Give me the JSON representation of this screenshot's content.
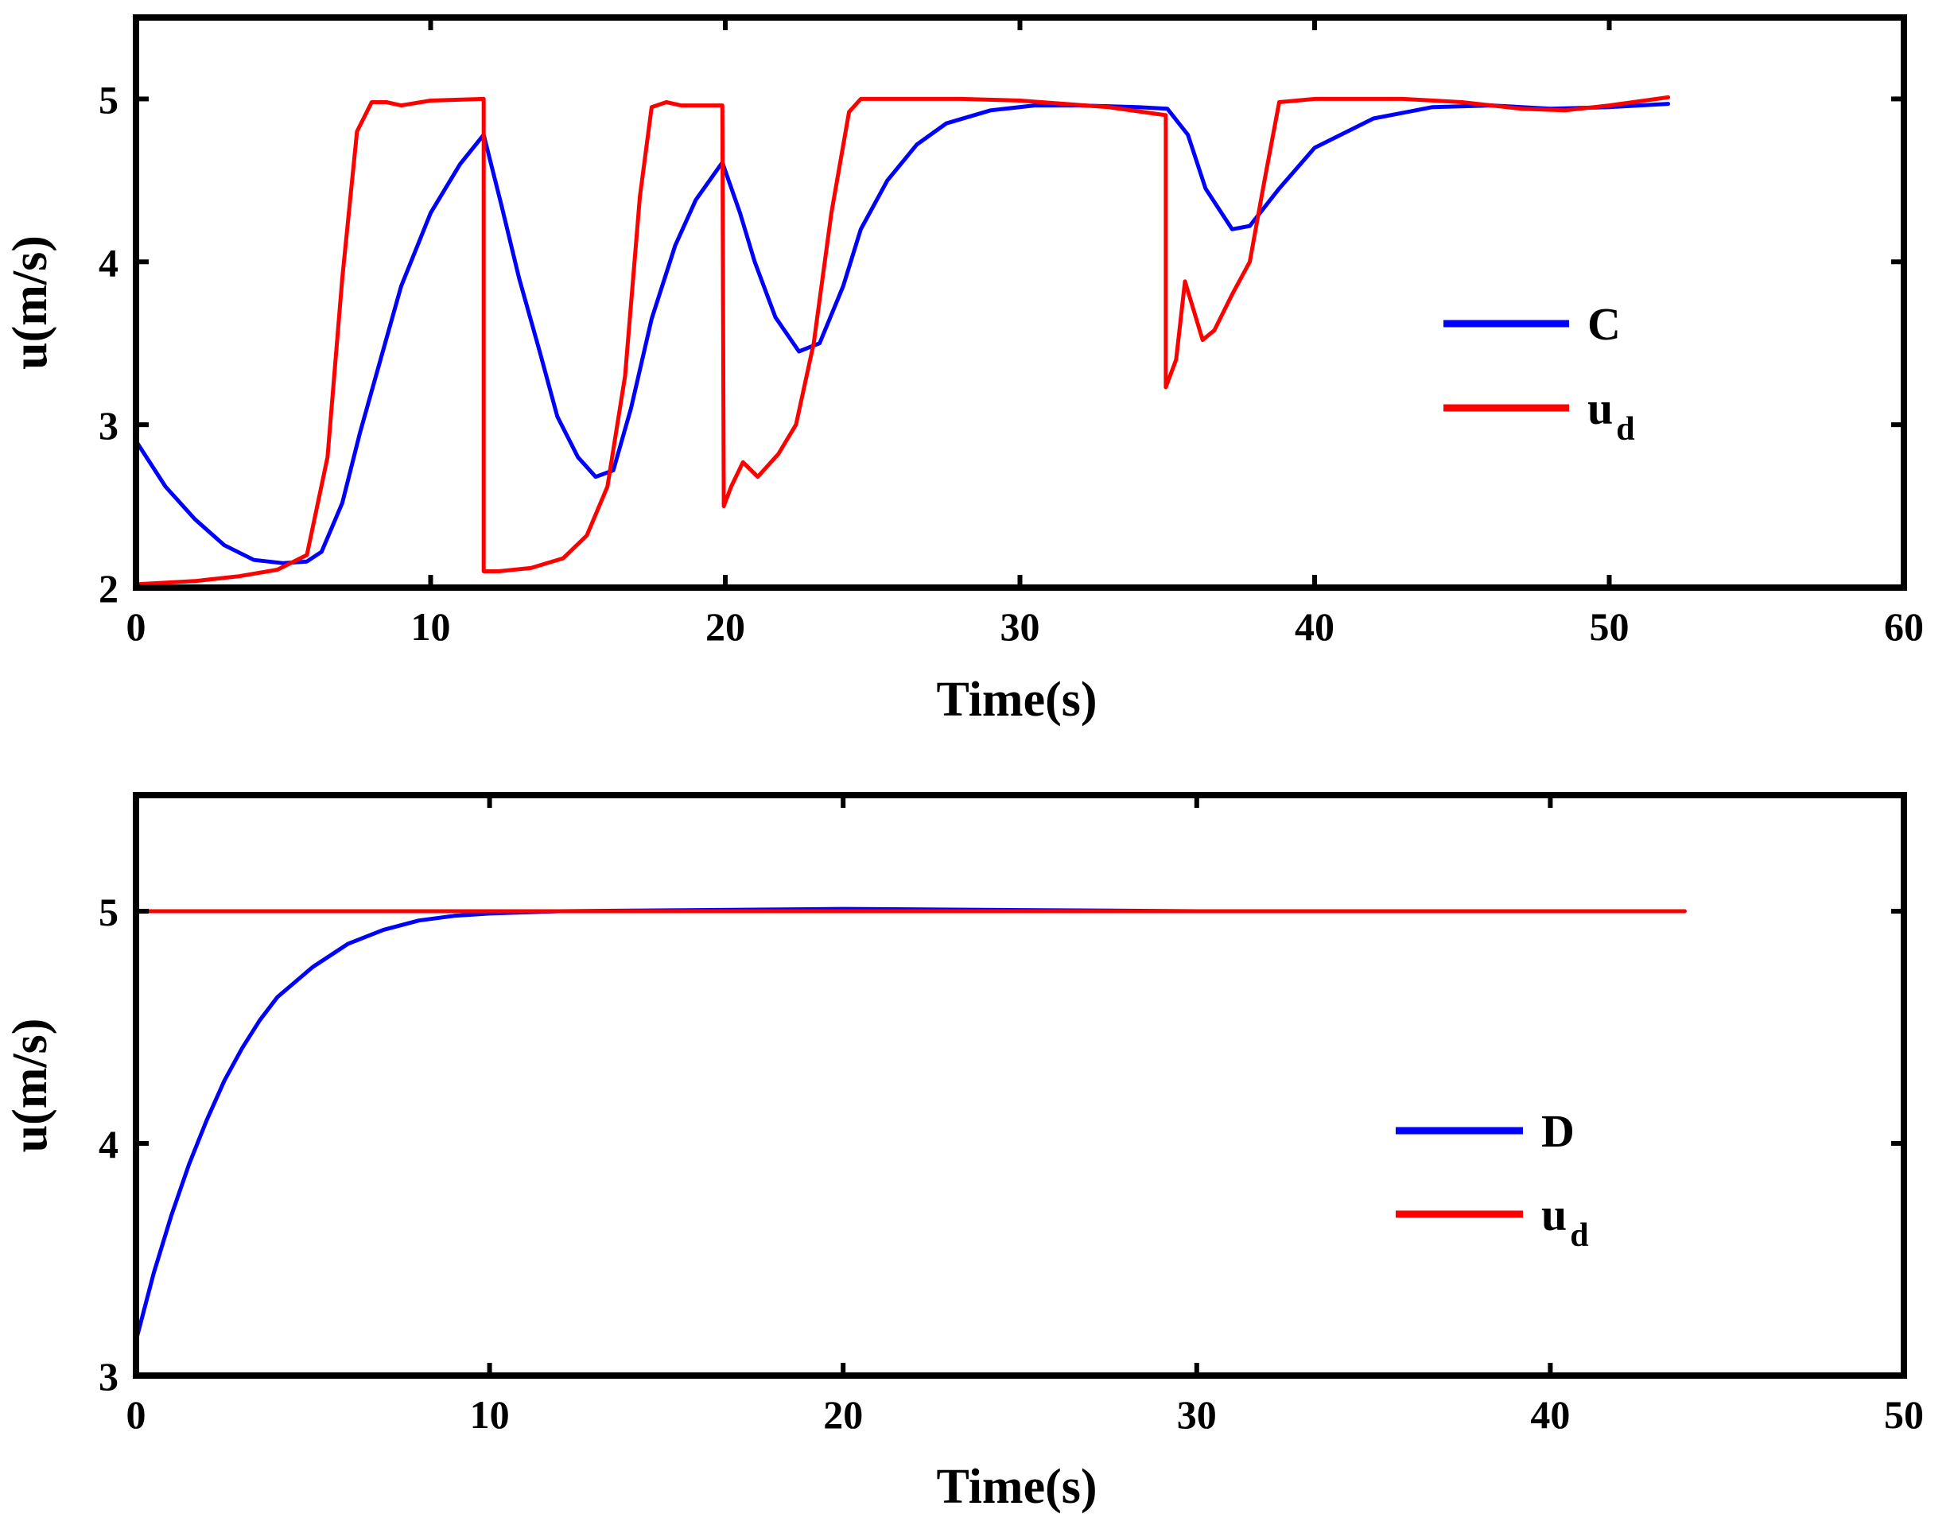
{
  "chart_data": [
    {
      "type": "line",
      "title": "",
      "xlabel": "Time(s)",
      "ylabel": "u(m/s)",
      "xlim": [
        0,
        60
      ],
      "ylim": [
        2,
        5.5
      ],
      "xticks": [
        0,
        10,
        20,
        30,
        40,
        50,
        60
      ],
      "yticks": [
        2,
        3,
        4,
        5
      ],
      "legend": {
        "position": "right-middle",
        "entries": [
          "C",
          "u_d"
        ]
      },
      "series": [
        {
          "name": "C",
          "legend_main": "C",
          "legend_sub": "",
          "color": "#0000ff",
          "points": [
            [
              0,
              2.9
            ],
            [
              1,
              2.62
            ],
            [
              2,
              2.42
            ],
            [
              3,
              2.26
            ],
            [
              4,
              2.17
            ],
            [
              5,
              2.15
            ],
            [
              5.8,
              2.16
            ],
            [
              6.3,
              2.22
            ],
            [
              7,
              2.52
            ],
            [
              7.6,
              2.95
            ],
            [
              8.3,
              3.4
            ],
            [
              9,
              3.85
            ],
            [
              10,
              4.3
            ],
            [
              11,
              4.6
            ],
            [
              11.8,
              4.78
            ],
            [
              12.4,
              4.35
            ],
            [
              13,
              3.9
            ],
            [
              13.7,
              3.45
            ],
            [
              14.3,
              3.05
            ],
            [
              15,
              2.8
            ],
            [
              15.6,
              2.68
            ],
            [
              16.2,
              2.72
            ],
            [
              16.8,
              3.1
            ],
            [
              17.5,
              3.65
            ],
            [
              18.3,
              4.1
            ],
            [
              19,
              4.38
            ],
            [
              19.9,
              4.61
            ],
            [
              20.5,
              4.3
            ],
            [
              21,
              4.0
            ],
            [
              21.7,
              3.66
            ],
            [
              22.5,
              3.45
            ],
            [
              23.2,
              3.5
            ],
            [
              24,
              3.85
            ],
            [
              24.6,
              4.2
            ],
            [
              25.5,
              4.5
            ],
            [
              26.5,
              4.72
            ],
            [
              27.5,
              4.85
            ],
            [
              29,
              4.93
            ],
            [
              30.5,
              4.96
            ],
            [
              32,
              4.96
            ],
            [
              34,
              4.95
            ],
            [
              35,
              4.94
            ],
            [
              35.7,
              4.78
            ],
            [
              36.3,
              4.45
            ],
            [
              37.2,
              4.2
            ],
            [
              37.8,
              4.22
            ],
            [
              38.8,
              4.45
            ],
            [
              40,
              4.7
            ],
            [
              42,
              4.88
            ],
            [
              44,
              4.95
            ],
            [
              46,
              4.96
            ],
            [
              48,
              4.94
            ],
            [
              50,
              4.95
            ],
            [
              52,
              4.97
            ]
          ]
        },
        {
          "name": "u_d",
          "legend_main": "u",
          "legend_sub": "d",
          "color": "#ff0000",
          "points": [
            [
              0,
              2.02
            ],
            [
              2,
              2.04
            ],
            [
              3.5,
              2.07
            ],
            [
              4.8,
              2.11
            ],
            [
              5.8,
              2.2
            ],
            [
              6.5,
              2.8
            ],
            [
              7,
              3.9
            ],
            [
              7.5,
              4.8
            ],
            [
              8,
              4.98
            ],
            [
              8.5,
              4.98
            ],
            [
              9,
              4.96
            ],
            [
              10,
              4.99
            ],
            [
              11.8,
              5.0
            ],
            [
              11.8,
              2.1
            ],
            [
              12.3,
              2.1
            ],
            [
              13.4,
              2.12
            ],
            [
              14.5,
              2.18
            ],
            [
              15.3,
              2.32
            ],
            [
              16,
              2.62
            ],
            [
              16.6,
              3.3
            ],
            [
              17.1,
              4.4
            ],
            [
              17.5,
              4.95
            ],
            [
              18,
              4.98
            ],
            [
              18.5,
              4.96
            ],
            [
              19.9,
              4.96
            ],
            [
              19.95,
              2.5
            ],
            [
              20.2,
              2.62
            ],
            [
              20.6,
              2.77
            ],
            [
              21.1,
              2.68
            ],
            [
              21.8,
              2.82
            ],
            [
              22.4,
              3.0
            ],
            [
              23,
              3.5
            ],
            [
              23.6,
              4.3
            ],
            [
              24.2,
              4.92
            ],
            [
              24.6,
              5.0
            ],
            [
              28,
              5.0
            ],
            [
              30,
              4.99
            ],
            [
              33,
              4.95
            ],
            [
              34.95,
              4.9
            ],
            [
              34.95,
              3.23
            ],
            [
              35.3,
              3.4
            ],
            [
              35.6,
              3.88
            ],
            [
              35.9,
              3.7
            ],
            [
              36.2,
              3.52
            ],
            [
              36.6,
              3.58
            ],
            [
              37.2,
              3.8
            ],
            [
              37.8,
              4.0
            ],
            [
              38.3,
              4.5
            ],
            [
              38.8,
              4.98
            ],
            [
              40,
              5.0
            ],
            [
              43,
              5.0
            ],
            [
              45,
              4.98
            ],
            [
              47,
              4.94
            ],
            [
              48.5,
              4.93
            ],
            [
              50,
              4.96
            ],
            [
              52,
              5.01
            ]
          ]
        }
      ]
    },
    {
      "type": "line",
      "title": "",
      "xlabel": "Time(s)",
      "ylabel": "u(m/s)",
      "xlim": [
        0,
        50
      ],
      "ylim": [
        3,
        5.5
      ],
      "xticks": [
        0,
        10,
        20,
        30,
        40,
        50
      ],
      "yticks": [
        3,
        4,
        5
      ],
      "legend": {
        "position": "right-middle",
        "entries": [
          "D",
          "u_d"
        ]
      },
      "series": [
        {
          "name": "D",
          "legend_main": "D",
          "legend_sub": "",
          "color": "#0000ff",
          "points": [
            [
              0,
              3.15
            ],
            [
              0.5,
              3.44
            ],
            [
              1,
              3.69
            ],
            [
              1.5,
              3.91
            ],
            [
              2,
              4.1
            ],
            [
              2.5,
              4.27
            ],
            [
              3,
              4.41
            ],
            [
              3.5,
              4.53
            ],
            [
              4,
              4.63
            ],
            [
              5,
              4.76
            ],
            [
              6,
              4.86
            ],
            [
              7,
              4.92
            ],
            [
              8,
              4.96
            ],
            [
              9,
              4.98
            ],
            [
              10,
              4.99
            ],
            [
              12,
              5.0
            ],
            [
              20,
              5.01
            ],
            [
              30,
              5.0
            ],
            [
              43.8,
              5.0
            ]
          ]
        },
        {
          "name": "u_d",
          "legend_main": "u",
          "legend_sub": "d",
          "color": "#ff0000",
          "points": [
            [
              0,
              5.0
            ],
            [
              43.8,
              5.0
            ]
          ]
        }
      ]
    }
  ]
}
